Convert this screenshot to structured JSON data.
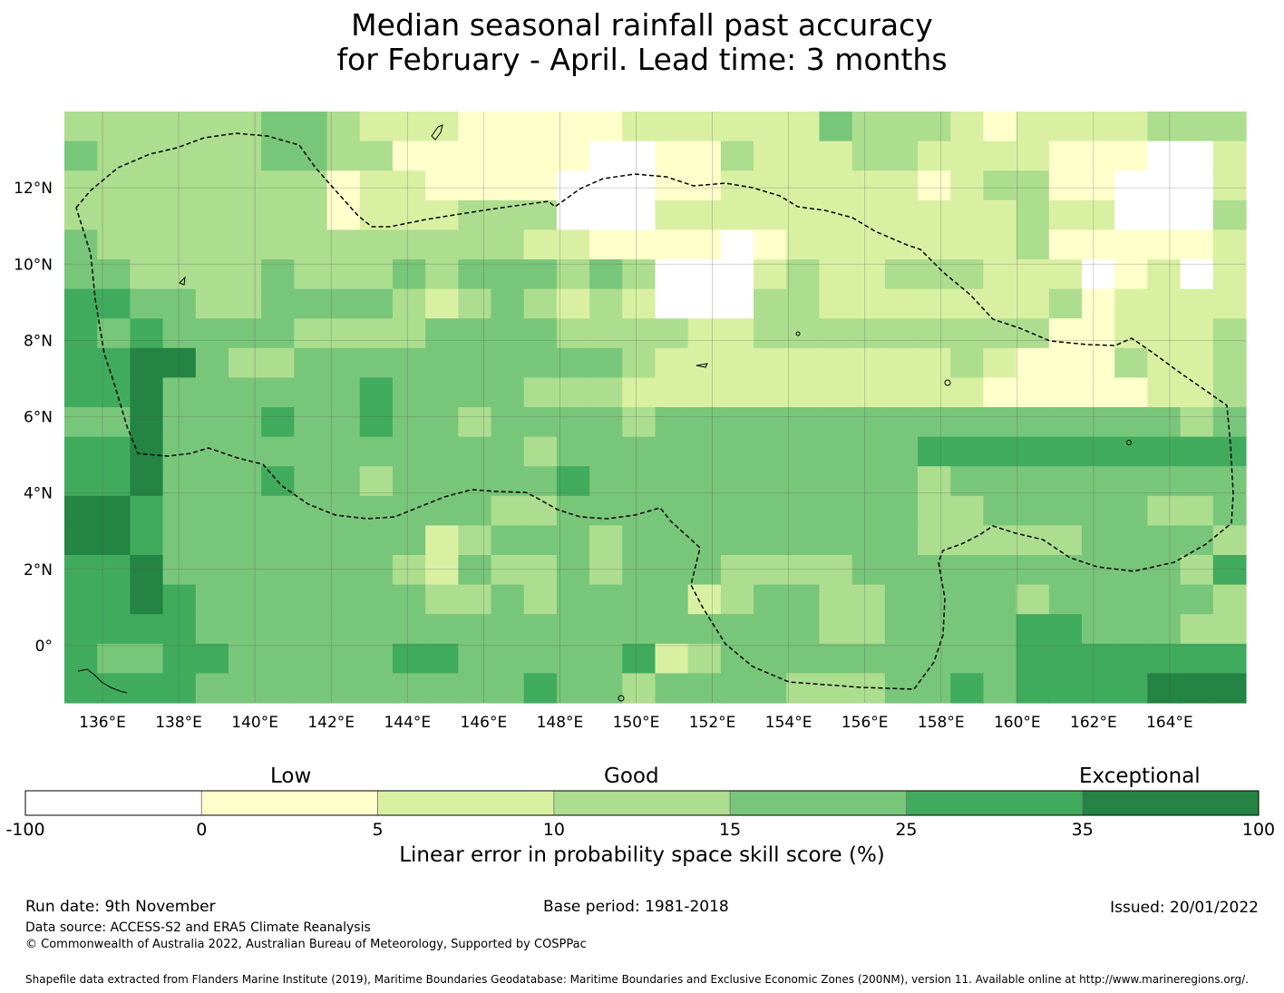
{
  "title": {
    "line1": "Median seasonal rainfall past accuracy",
    "line2": "for February - April. Lead time: 3 months"
  },
  "map": {
    "lon_range": [
      135,
      166
    ],
    "lat_range": [
      -1.5,
      14
    ],
    "lon_ticks": [
      "136°E",
      "138°E",
      "140°E",
      "142°E",
      "144°E",
      "146°E",
      "148°E",
      "150°E",
      "152°E",
      "154°E",
      "156°E",
      "158°E",
      "160°E",
      "162°E",
      "164°E"
    ],
    "lat_ticks": [
      "12°N",
      "10°N",
      "8°N",
      "6°N",
      "4°N",
      "2°N",
      "0°"
    ],
    "grid_cols": 36,
    "grid_rows": 20,
    "grid_rows_top_to_bottom": [
      "333333443222111112222224333212222333",
      "433333443311111100113222332222111002",
      "333333331221111000112222221233110002",
      "333333331222333000222222222223220003",
      "433333333333332211110122222223111112",
      "443333433343444343000232233322201202",
      "554433444432343232000332222222312222",
      "545444433334444333322333333333112223",
      "556643344444444443222222222321113223",
      "556444444544443332222222222211111223",
      "446444544544344443444444444444444434",
      "556444444444443444444444445555555555",
      "556444544344444544444444443444444444",
      "665444444444433444444444443344444334",
      "665444444442344434444444443333344443",
      "556444444432433434443333444444444435",
      "556544444443343444423443344443444443",
      "555544444444444444444443344445544433",
      "544554444455444445234444444445555555",
      "555544444444445443444433344545555666"
    ],
    "country_outline_note": "EEZ boundary dashed"
  },
  "colorbar": {
    "categories": [
      "Low",
      "Good",
      "Exceptional"
    ],
    "tick_labels": [
      "-100",
      "0",
      "5",
      "10",
      "15",
      "25",
      "35",
      "100"
    ],
    "colors": [
      "#ffffff",
      "#ffffcc",
      "#d9f0a3",
      "#addd8e",
      "#78c679",
      "#41ab5d",
      "#238443"
    ],
    "xlabel": "Linear error in probability space skill score (%)"
  },
  "footer": {
    "run_date": "Run date: 9th November",
    "base_period": "Base period: 1981-2018",
    "issued": "Issued: 20/01/2022",
    "data_source": "Data source: ACCESS-S2 and ERA5 Climate Reanalysis",
    "copyright": "© Commonwealth of Australia 2022, Australian Bureau of Meteorology, Supported by COSPPac",
    "shapefile": "Shapefile data extracted from Flanders Marine Institute (2019), Maritime Boundaries Geodatabase: Maritime Boundaries and Exclusive Economic Zones (200NM), version 11. Available online at http://www.marineregions.org/."
  }
}
